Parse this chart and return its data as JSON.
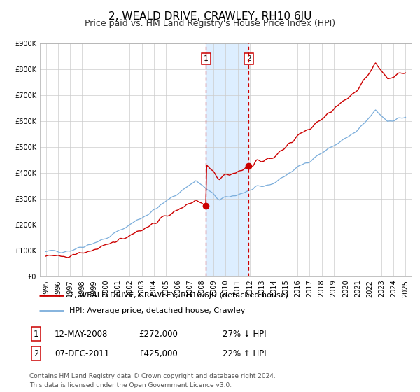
{
  "title": "2, WEALD DRIVE, CRAWLEY, RH10 6JU",
  "subtitle": "Price paid vs. HM Land Registry's House Price Index (HPI)",
  "xlim": [
    1994.5,
    2025.5
  ],
  "ylim": [
    0,
    900000
  ],
  "yticks": [
    0,
    100000,
    200000,
    300000,
    400000,
    500000,
    600000,
    700000,
    800000,
    900000
  ],
  "ytick_labels": [
    "£0",
    "£100K",
    "£200K",
    "£300K",
    "£400K",
    "£500K",
    "£600K",
    "£700K",
    "£800K",
    "£900K"
  ],
  "xticks": [
    1995,
    1996,
    1997,
    1998,
    1999,
    2000,
    2001,
    2002,
    2003,
    2004,
    2005,
    2006,
    2007,
    2008,
    2009,
    2010,
    2011,
    2012,
    2013,
    2014,
    2015,
    2016,
    2017,
    2018,
    2019,
    2020,
    2021,
    2022,
    2023,
    2024,
    2025
  ],
  "sale1_x": 2008.36,
  "sale1_y": 272000,
  "sale2_x": 2011.92,
  "sale2_y": 425000,
  "red_line_color": "#cc0000",
  "blue_line_color": "#7aaddb",
  "shade_color": "#ddeeff",
  "grid_color": "#cccccc",
  "background_color": "#ffffff",
  "legend_label1": "2, WEALD DRIVE, CRAWLEY, RH10 6JU (detached house)",
  "legend_label2": "HPI: Average price, detached house, Crawley",
  "annotation1_date": "12-MAY-2008",
  "annotation1_price": "£272,000",
  "annotation1_hpi": "27% ↓ HPI",
  "annotation2_date": "07-DEC-2011",
  "annotation2_price": "£425,000",
  "annotation2_hpi": "22% ↑ HPI",
  "footer": "Contains HM Land Registry data © Crown copyright and database right 2024.\nThis data is licensed under the Open Government Licence v3.0.",
  "title_fontsize": 11,
  "subtitle_fontsize": 9,
  "tick_fontsize": 7,
  "legend_fontsize": 8,
  "annotation_fontsize": 8.5,
  "footer_fontsize": 6.5
}
